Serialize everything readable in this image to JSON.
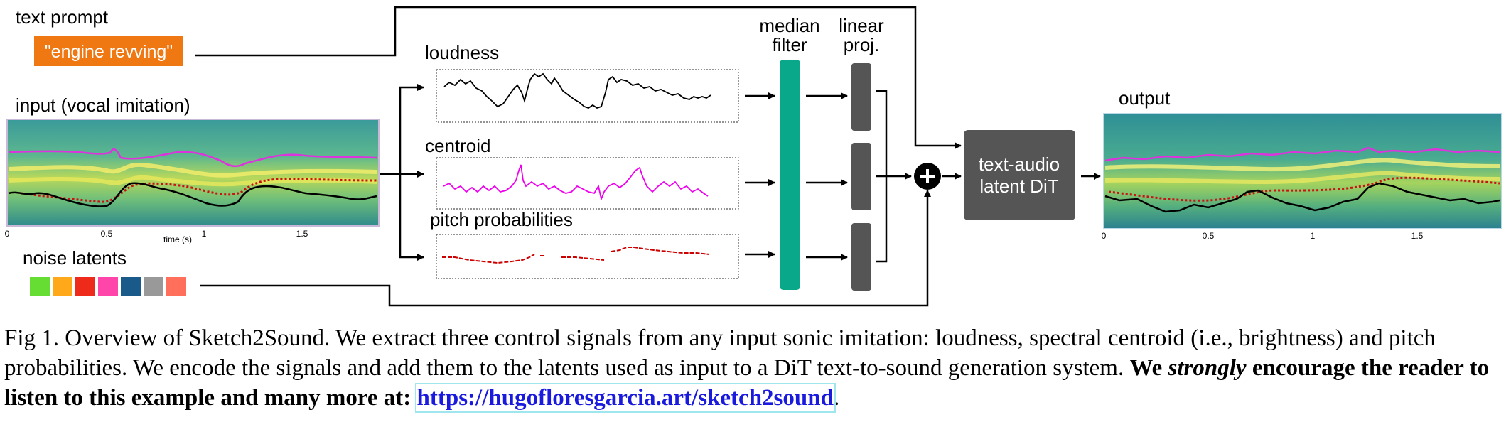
{
  "figure": {
    "text_prompt_label": "text prompt",
    "prompt_text": "\"engine revving\"",
    "input_label": "input (vocal imitation)",
    "input_axis": {
      "ticks": [
        "0",
        "0.5",
        "1",
        "1.5"
      ],
      "xlabel": "time (s)"
    },
    "noise_label": "noise latents",
    "noise_colors": [
      "#66dd33",
      "#ffa81a",
      "#ee2a1a",
      "#ff44aa",
      "#1a5a8a",
      "#999999",
      "#ff6f5a"
    ],
    "signals": [
      {
        "label": "loudness",
        "color": "#000000"
      },
      {
        "label": "centroid",
        "color": "#ee00ee"
      },
      {
        "label": "pitch probabilities",
        "color": "#cc0000"
      }
    ],
    "median_filter_label": [
      "median",
      "filter"
    ],
    "linear_proj_label": [
      "linear",
      "proj."
    ],
    "dit_label": [
      "text-audio",
      "latent DiT"
    ],
    "output_label": "output",
    "output_axis": {
      "ticks": [
        "0",
        "0.5",
        "1",
        "1.5"
      ]
    },
    "colors": {
      "prompt_bg": "#f07813",
      "median_filter": "#0aa88a",
      "proj": "#555555",
      "dit": "#555555"
    }
  },
  "caption": {
    "part1": "Fig 1. Overview of Sketch2Sound. We extract three control signals from any input sonic imitation: loudness, spectral centroid (i.e., brightness) and pitch probabilities. We encode the signals and add them to the latents used as input to a DiT text-to-sound generation system. ",
    "bold1": "We ",
    "bold_italic": "strongly",
    "bold2": " encourage the reader to listen to this example and many more at: ",
    "link": "https://hugofloresgarcia.art/sketch2sound",
    "end": "."
  }
}
